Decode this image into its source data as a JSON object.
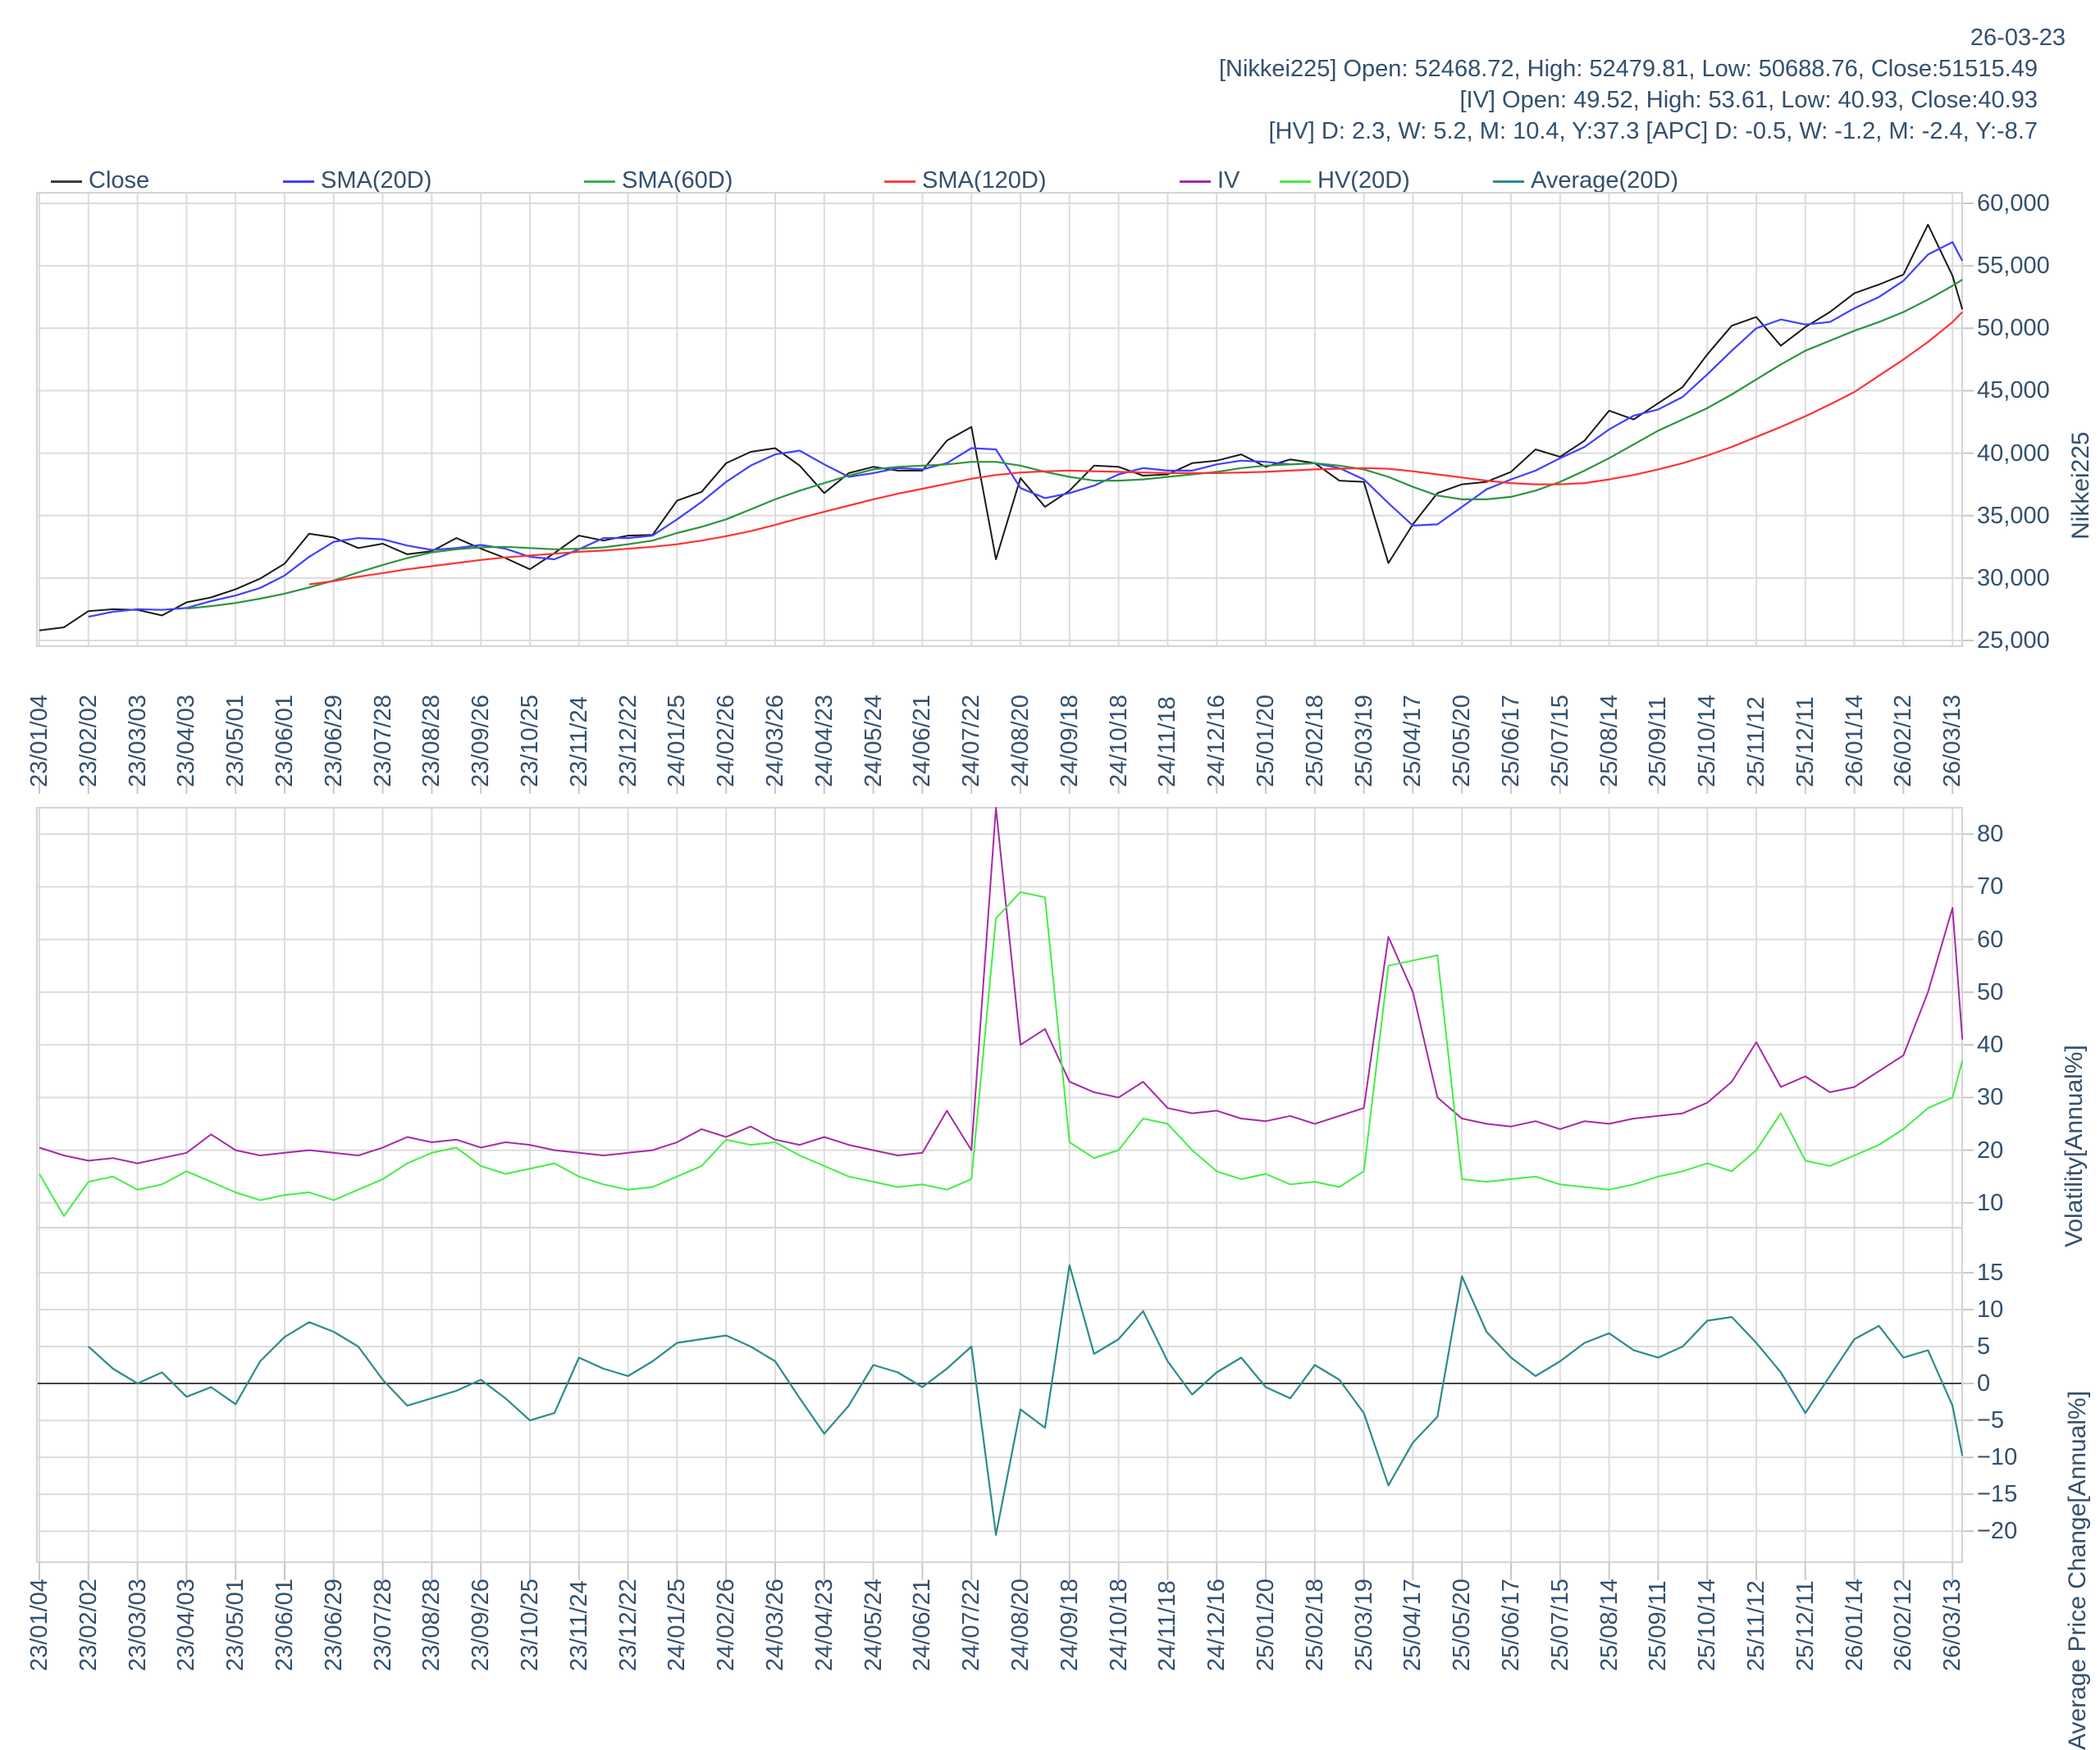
{
  "header": {
    "date": "26-03-23",
    "line1": "[Nikkei225] Open: 52468.72, High: 52479.81, Low: 50688.76, Close:51515.49",
    "line2": "[IV] Open: 49.52, High: 53.61, Low: 40.93, Close:40.93",
    "line3": "[HV] D: 2.3, W: 5.2, M: 10.4, Y:37.3 [APC] D: -0.5, W: -1.2, M: -2.4, Y:-8.7"
  },
  "legend": {
    "items": [
      {
        "label": "Close",
        "color": "#3a3a3a"
      },
      {
        "label": "SMA(20D)",
        "color": "#4040ff"
      },
      {
        "label": "SMA(60D)",
        "color": "#3fae4c"
      },
      {
        "label": "SMA(120D)",
        "color": "#ff4040"
      },
      {
        "label": "IV",
        "color": "#a62aa6"
      },
      {
        "label": "HV(20D)",
        "color": "#44ee44"
      },
      {
        "label": "Average(20D)",
        "color": "#2e8b8b"
      }
    ]
  },
  "colors": {
    "text": "#33506e",
    "grid": "#dcdcdc",
    "border": "#d4d4d4",
    "tick": "#c8c8c8",
    "zero_line": "#444444",
    "background": "#ffffff"
  },
  "chart_data": {
    "categories": [
      "23/01/04",
      "23/02/02",
      "23/03/03",
      "23/04/03",
      "23/05/01",
      "23/06/01",
      "23/06/29",
      "23/07/28",
      "23/08/28",
      "23/09/26",
      "23/10/25",
      "23/11/24",
      "23/12/22",
      "24/01/25",
      "24/02/26",
      "24/03/26",
      "24/04/23",
      "24/05/24",
      "24/06/21",
      "24/07/22",
      "24/08/20",
      "24/09/18",
      "24/10/18",
      "24/11/18",
      "24/12/16",
      "25/01/20",
      "25/02/18",
      "25/03/19",
      "25/04/17",
      "25/05/20",
      "25/06/17",
      "25/07/15",
      "25/08/14",
      "25/09/11",
      "25/10/14",
      "25/11/12",
      "25/12/11",
      "26/01/14",
      "26/02/12",
      "26/03/13"
    ],
    "panels": [
      {
        "type": "line",
        "title": "Nikkei225 price with moving averages",
        "xlabel": "",
        "ylabel": "Nikkei225",
        "ylim": [
          24540,
          60854
        ],
        "grid": true,
        "yticks": [
          {
            "v": 60000,
            "label": "60,000"
          },
          {
            "v": 55000,
            "label": "55,000"
          },
          {
            "v": 50000,
            "label": "50,000"
          },
          {
            "v": 45000,
            "label": "45,000"
          },
          {
            "v": 40000,
            "label": "40,000"
          },
          {
            "v": 35000,
            "label": "35,000"
          },
          {
            "v": 30000,
            "label": "30,000"
          },
          {
            "v": 25000,
            "label": "25,000"
          }
        ],
        "series": [
          {
            "name": "Close",
            "color": "#1a1a1a",
            "width": 2,
            "x0": 0,
            "dx": 0.5,
            "end_x": 39.2,
            "values": [
              25800,
              26050,
              27350,
              27500,
              27450,
              27000,
              28050,
              28450,
              29100,
              29950,
              31150,
              33550,
              33250,
              32400,
              32750,
              31900,
              32150,
              33200,
              32350,
              31600,
              30700,
              32000,
              33400,
              33000,
              33400,
              33450,
              36200,
              36900,
              39200,
              40100,
              40400,
              39000,
              36800,
              38400,
              38900,
              38600,
              38600,
              41000,
              42100,
              31500,
              38000,
              35700,
              37000,
              39000,
              38900,
              38200,
              38300,
              39200,
              39400,
              39900,
              38900,
              39500,
              39200,
              37800,
              37700,
              31200,
              34300,
              36800,
              37500,
              37700,
              38500,
              40300,
              39700,
              41000,
              43400,
              42700,
              44000,
              45300,
              47900,
              50200,
              50900,
              48600,
              50100,
              51300,
              52800,
              53500,
              54300,
              58300,
              54200,
              51515
            ]
          },
          {
            "name": "SMA(20D)",
            "color": "#4040ff",
            "width": 2.2,
            "x0": 1,
            "dx": 0.5,
            "end_x": 39.2,
            "values": [
              26900,
              27300,
              27500,
              27450,
              27600,
              28150,
              28600,
              29200,
              30200,
              31700,
              32900,
              33200,
              33100,
              32600,
              32250,
              32400,
              32650,
              32350,
              31700,
              31500,
              32300,
              33200,
              33200,
              33400,
              34700,
              36100,
              37700,
              39000,
              39900,
              40200,
              39100,
              38100,
              38400,
              38800,
              38700,
              39200,
              40400,
              40300,
              37200,
              36400,
              36800,
              37400,
              38300,
              38800,
              38600,
              38600,
              39100,
              39400,
              39300,
              39100,
              39200,
              38800,
              37900,
              36000,
              34200,
              34300,
              35700,
              37100,
              37900,
              38600,
              39600,
              40500,
              41900,
              43000,
              43500,
              44500,
              46300,
              48200,
              50000,
              50700,
              50300,
              50500,
              51600,
              52500,
              53800,
              55900,
              56900,
              55400
            ]
          },
          {
            "name": "SMA(60D)",
            "color": "#2e9440",
            "width": 2.2,
            "x0": 3,
            "dx": 0.5,
            "end_x": 39.2,
            "values": [
              27550,
              27750,
              28000,
              28350,
              28750,
              29250,
              29800,
              30450,
              31050,
              31600,
              32050,
              32300,
              32450,
              32500,
              32400,
              32300,
              32350,
              32450,
              32700,
              33000,
              33600,
              34100,
              34700,
              35500,
              36300,
              37000,
              37600,
              38200,
              38700,
              38900,
              39000,
              39100,
              39300,
              39300,
              39000,
              38500,
              38100,
              37800,
              37800,
              37900,
              38100,
              38300,
              38500,
              38800,
              39000,
              39100,
              39200,
              39000,
              38700,
              38100,
              37300,
              36600,
              36300,
              36300,
              36500,
              37000,
              37700,
              38600,
              39600,
              40700,
              41800,
              42700,
              43600,
              44700,
              45900,
              47100,
              48200,
              49000,
              49800,
              50500,
              51300,
              52300,
              53400,
              53900
            ]
          },
          {
            "name": "SMA(120D)",
            "color": "#ff3333",
            "width": 2.2,
            "x0": 5.5,
            "dx": 0.5,
            "end_x": 39.2,
            "values": [
              29500,
              29750,
              30100,
              30400,
              30700,
              30950,
              31200,
              31450,
              31650,
              31800,
              31950,
              32100,
              32200,
              32350,
              32500,
              32700,
              33000,
              33350,
              33750,
              34250,
              34800,
              35300,
              35800,
              36300,
              36750,
              37150,
              37550,
              37950,
              38250,
              38450,
              38550,
              38600,
              38550,
              38500,
              38450,
              38400,
              38400,
              38400,
              38450,
              38500,
              38600,
              38700,
              38750,
              38800,
              38750,
              38550,
              38300,
              38050,
              37800,
              37600,
              37500,
              37500,
              37600,
              37900,
              38250,
              38700,
              39200,
              39800,
              40500,
              41300,
              42100,
              42950,
              43900,
              44900,
              46200,
              47500,
              48900,
              50500,
              51300
            ]
          }
        ]
      },
      {
        "type": "line",
        "title": "Implied and historical volatility",
        "xlabel": "",
        "ylabel": "Volatility[Annual%]",
        "ylim": [
          5.3,
          85.0
        ],
        "grid": true,
        "yticks": [
          {
            "v": 80,
            "label": "80"
          },
          {
            "v": 70,
            "label": "70"
          },
          {
            "v": 60,
            "label": "60"
          },
          {
            "v": 50,
            "label": "50"
          },
          {
            "v": 40,
            "label": "40"
          },
          {
            "v": 30,
            "label": "30"
          },
          {
            "v": 20,
            "label": "20"
          },
          {
            "v": 10,
            "label": "10"
          }
        ],
        "series": [
          {
            "name": "IV",
            "color": "#a62aa6",
            "width": 2,
            "x0": 0,
            "dx": 0.5,
            "end_x": 39.2,
            "values": [
              20.5,
              19,
              18,
              18.5,
              17.5,
              18.5,
              19.5,
              23,
              20,
              19,
              19.5,
              20,
              19.5,
              19,
              20.5,
              22.5,
              21.5,
              22,
              20.5,
              21.5,
              21,
              20,
              19.5,
              19,
              19.5,
              20,
              21.5,
              24,
              22.5,
              24.5,
              22,
              21,
              22.5,
              21,
              20,
              19,
              19.5,
              27.5,
              20,
              85,
              40,
              43,
              33,
              31,
              30,
              33,
              28,
              27,
              27.5,
              26,
              25.5,
              26.5,
              25,
              26.5,
              28,
              60.5,
              50,
              30,
              26,
              25,
              24.5,
              25.5,
              24,
              25.5,
              25,
              26,
              26.5,
              27,
              29,
              33,
              40.5,
              32,
              34,
              31,
              32,
              35,
              38,
              50,
              66,
              41
            ]
          },
          {
            "name": "HV(20D)",
            "color": "#44ee44",
            "width": 2,
            "x0": 0,
            "dx": 0.5,
            "end_x": 39.2,
            "values": [
              15.5,
              7.5,
              14,
              15,
              12.5,
              13.5,
              16,
              14,
              12,
              10.5,
              11.5,
              12,
              10.5,
              12.5,
              14.5,
              17.5,
              19.5,
              20.5,
              17,
              15.5,
              16.5,
              17.5,
              15,
              13.5,
              12.5,
              13,
              15,
              17,
              22,
              21,
              21.5,
              19,
              17,
              15,
              14,
              13,
              13.5,
              12.5,
              14.5,
              64,
              69,
              68,
              21.5,
              18.5,
              20,
              26,
              25,
              20,
              16,
              14.5,
              15.5,
              13.5,
              14,
              13,
              16,
              55,
              56,
              57,
              14.5,
              14,
              14.5,
              15,
              13.5,
              13,
              12.5,
              13.5,
              15,
              16,
              17.5,
              16,
              20,
              27,
              18,
              17,
              19,
              21,
              24,
              28,
              30,
              37
            ]
          }
        ]
      },
      {
        "type": "line",
        "title": "Average price change",
        "xlabel": "",
        "ylabel": "Average Price Change[Annual%]",
        "ylim": [
          -24.2,
          21.1
        ],
        "grid": true,
        "zero_line": true,
        "yticks": [
          {
            "v": 15,
            "label": "15"
          },
          {
            "v": 10,
            "label": "10"
          },
          {
            "v": 5,
            "label": "5"
          },
          {
            "v": 0,
            "label": "0"
          },
          {
            "v": -5,
            "label": "−5"
          },
          {
            "v": -10,
            "label": "−10"
          },
          {
            "v": -15,
            "label": "−15"
          },
          {
            "v": -20,
            "label": "−20"
          }
        ],
        "series": [
          {
            "name": "Average(20D)",
            "color": "#2e8b8b",
            "width": 2.2,
            "x0": 1,
            "dx": 0.5,
            "end_x": 39.2,
            "values": [
              5,
              2,
              0,
              1.5,
              -1.8,
              -0.5,
              -2.8,
              3,
              6.3,
              8.3,
              7,
              5,
              0.5,
              -3,
              -2,
              -1,
              0.5,
              -2,
              -5,
              -4,
              3.5,
              2,
              1,
              3,
              5.5,
              6,
              6.5,
              5,
              3,
              -2,
              -6.8,
              -3,
              2.5,
              1.5,
              -0.5,
              2,
              5,
              -20.5,
              -3.5,
              -6,
              16,
              4,
              6,
              9.8,
              3,
              -1.5,
              1.5,
              3.5,
              -0.5,
              -2,
              2.5,
              0.5,
              -4,
              -13.8,
              -8,
              -4.5,
              14.5,
              7,
              3.5,
              1,
              3,
              5.5,
              6.8,
              4.5,
              3.5,
              5,
              8.5,
              9,
              5.5,
              1.5,
              -4,
              1,
              6,
              7.8,
              3.5,
              4.5,
              -3,
              -9.8
            ]
          }
        ]
      }
    ]
  }
}
